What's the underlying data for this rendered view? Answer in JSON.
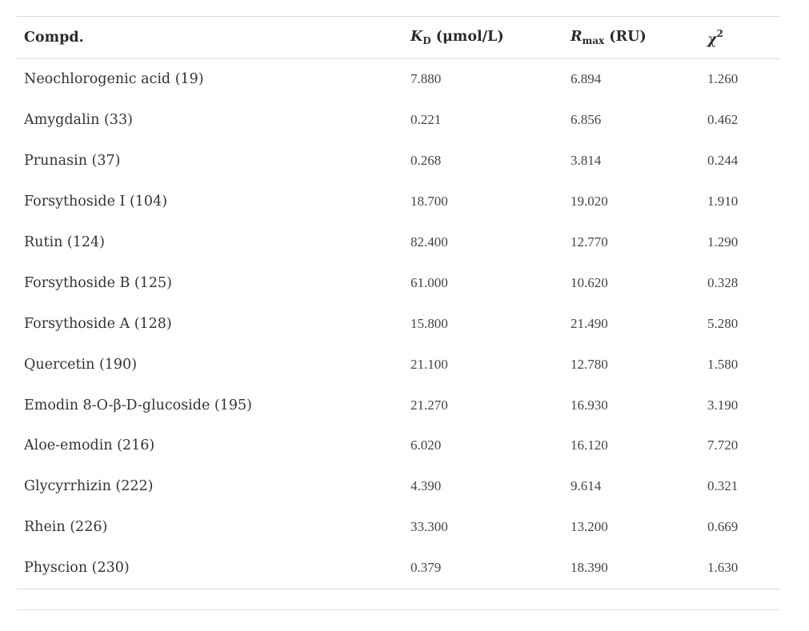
{
  "header": {
    "compd": "Compd.",
    "kd_symbol": "K",
    "kd_sub": "D",
    "kd_unit": " (μmol/L)",
    "rmax_symbol": "R",
    "rmax_sub": "max",
    "rmax_unit": " (RU)",
    "chi_symbol": "χ",
    "chi_sup": "2"
  },
  "rows": [
    {
      "compd": "Neochlorogenic acid (19)",
      "kd": "7.880",
      "rmax": "6.894",
      "chi2": "1.260"
    },
    {
      "compd": "Amygdalin (33)",
      "kd": "0.221",
      "rmax": "6.856",
      "chi2": "0.462"
    },
    {
      "compd": "Prunasin (37)",
      "kd": "0.268",
      "rmax": "3.814",
      "chi2": "0.244"
    },
    {
      "compd": "Forsythoside I (104)",
      "kd": "18.700",
      "rmax": "19.020",
      "chi2": "1.910"
    },
    {
      "compd": "Rutin (124)",
      "kd": "82.400",
      "rmax": "12.770",
      "chi2": "1.290"
    },
    {
      "compd": "Forsythoside B (125)",
      "kd": "61.000",
      "rmax": "10.620",
      "chi2": "0.328"
    },
    {
      "compd": "Forsythoside A (128)",
      "kd": "15.800",
      "rmax": "21.490",
      "chi2": "5.280"
    },
    {
      "compd": "Quercetin (190)",
      "kd": "21.100",
      "rmax": "12.780",
      "chi2": "1.580"
    },
    {
      "compd": "Emodin 8-O-β-D-glucoside (195)",
      "kd": "21.270",
      "rmax": "16.930",
      "chi2": "3.190"
    },
    {
      "compd": "Aloe-emodin (216)",
      "kd": "6.020",
      "rmax": "16.120",
      "chi2": "7.720"
    },
    {
      "compd": "Glycyrrhizin (222)",
      "kd": "4.390",
      "rmax": "9.614",
      "chi2": "0.321"
    },
    {
      "compd": "Rhein (226)",
      "kd": "33.300",
      "rmax": "13.200",
      "chi2": "0.669"
    },
    {
      "compd": "Physcion (230)",
      "kd": "0.379",
      "rmax": "18.390",
      "chi2": "1.630"
    }
  ]
}
